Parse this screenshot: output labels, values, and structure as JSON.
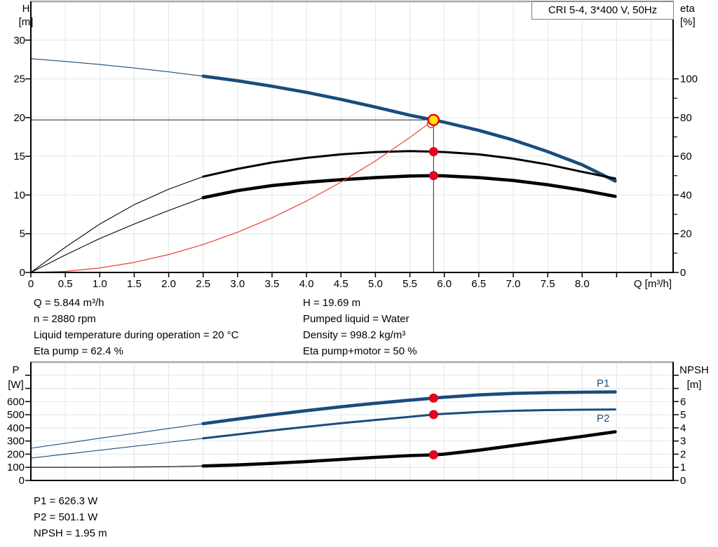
{
  "title_box": "CRI 5-4, 3*400 V, 50Hz",
  "colors": {
    "curve_blue": "#1a4c7d",
    "curve_black": "#000000",
    "curve_red": "#f03c32",
    "dot_red": "#e8001c",
    "duty_yellow": "#ffe400",
    "grid": "#e2e6e6",
    "border_gray": "#a5a9a9",
    "axis": "#000000",
    "ref_line": "#4d4d4d",
    "title_border": "#7f7f7f"
  },
  "top_chart": {
    "left_axis": {
      "title": [
        "H",
        "[m]"
      ],
      "ticks": [
        0,
        5,
        10,
        15,
        20,
        25,
        30
      ]
    },
    "right_axis": {
      "title": [
        "eta",
        "[%]"
      ],
      "ticks": [
        0,
        20,
        40,
        60,
        80,
        100
      ],
      "minor_ticks": [
        10,
        30,
        50,
        70,
        90
      ]
    },
    "x_axis": {
      "title": "Q [m³/h]",
      "tick_labels": [
        "0",
        "0.5",
        "1.0",
        "1.5",
        "2.0",
        "2.5",
        "3.0",
        "3.5",
        "4.0",
        "4.5",
        "5.0",
        "5.5",
        "6.0",
        "6.5",
        "7.0",
        "7.5",
        "8.0"
      ],
      "tick_values": [
        0,
        0.5,
        1,
        1.5,
        2,
        2.5,
        3,
        3.5,
        4,
        4.5,
        5,
        5.5,
        6,
        6.5,
        7,
        7.5,
        8
      ],
      "unlabeled_ticks": [
        8.5,
        9.0
      ]
    }
  },
  "bottom_chart": {
    "left_axis": {
      "title": [
        "P",
        "[W]"
      ],
      "ticks": [
        0,
        100,
        200,
        300,
        400,
        500,
        600
      ],
      "unlabeled_ticks": [
        700,
        800
      ]
    },
    "right_axis": {
      "title": [
        "NPSH",
        "[m]"
      ],
      "ticks": [
        0,
        1,
        2,
        3,
        4,
        5,
        6
      ],
      "unlabeled_ticks": [
        7,
        8
      ]
    }
  },
  "chart_data": [
    {
      "type": "line",
      "title": "CRI 5-4, 3*400 V, 50Hz",
      "xlabel": "Q [m³/h]",
      "ylabel": "H [m]",
      "y2label": "eta [%]",
      "xlim": [
        0,
        9.32
      ],
      "ylim": [
        0,
        35
      ],
      "y2lim": [
        0,
        140
      ],
      "grid": true,
      "series": [
        {
          "name": "H-Q curve",
          "axis": "left",
          "color": "blue",
          "weight": "heavy",
          "bold_from": 2.5,
          "points": [
            [
              0,
              27.6
            ],
            [
              0.5,
              27.25
            ],
            [
              1,
              26.85
            ],
            [
              1.5,
              26.4
            ],
            [
              2,
              25.9
            ],
            [
              2.5,
              25.35
            ],
            [
              3,
              24.75
            ],
            [
              3.5,
              24.05
            ],
            [
              4,
              23.25
            ],
            [
              4.5,
              22.35
            ],
            [
              5,
              21.35
            ],
            [
              5.5,
              20.3
            ],
            [
              5.844,
              19.69
            ],
            [
              6,
              19.4
            ],
            [
              6.5,
              18.35
            ],
            [
              7,
              17.1
            ],
            [
              7.5,
              15.6
            ],
            [
              8,
              13.9
            ],
            [
              8.48,
              11.8
            ]
          ]
        },
        {
          "name": "eta pump",
          "axis": "right",
          "color": "black",
          "weight": "medium",
          "bold_from": 2.5,
          "points": [
            [
              0,
              0
            ],
            [
              0.5,
              13
            ],
            [
              1,
              25
            ],
            [
              1.5,
              35
            ],
            [
              2,
              43
            ],
            [
              2.5,
              49.5
            ],
            [
              3,
              53.5
            ],
            [
              3.5,
              56.8
            ],
            [
              4,
              59.2
            ],
            [
              4.5,
              61
            ],
            [
              5,
              62.2
            ],
            [
              5.5,
              62.7
            ],
            [
              5.844,
              62.4
            ],
            [
              6,
              62.2
            ],
            [
              6.5,
              61
            ],
            [
              7,
              58.8
            ],
            [
              7.5,
              55.8
            ],
            [
              8,
              52
            ],
            [
              8.48,
              48.5
            ]
          ]
        },
        {
          "name": "eta pump+motor",
          "axis": "right",
          "color": "black",
          "weight": "heavy",
          "bold_from": 2.5,
          "points": [
            [
              0,
              0
            ],
            [
              0.5,
              9
            ],
            [
              1,
              17.5
            ],
            [
              1.5,
              25
            ],
            [
              2,
              32
            ],
            [
              2.5,
              38.6
            ],
            [
              3,
              42.3
            ],
            [
              3.5,
              44.9
            ],
            [
              4,
              46.6
            ],
            [
              4.5,
              47.9
            ],
            [
              5,
              49
            ],
            [
              5.5,
              49.8
            ],
            [
              5.844,
              50
            ],
            [
              6,
              49.9
            ],
            [
              6.5,
              49
            ],
            [
              7,
              47.5
            ],
            [
              7.5,
              45.3
            ],
            [
              8,
              42.5
            ],
            [
              8.48,
              39.3
            ]
          ]
        },
        {
          "name": "system curve",
          "axis": "left",
          "color": "red",
          "weight": "light",
          "points": [
            [
              0,
              0
            ],
            [
              0.5,
              0.14
            ],
            [
              1,
              0.58
            ],
            [
              1.5,
              1.3
            ],
            [
              2,
              2.31
            ],
            [
              2.5,
              3.6
            ],
            [
              3,
              5.19
            ],
            [
              3.5,
              7.06
            ],
            [
              4,
              9.22
            ],
            [
              4.5,
              11.67
            ],
            [
              5,
              14.41
            ],
            [
              5.5,
              17.44
            ],
            [
              5.844,
              19.69
            ]
          ]
        }
      ],
      "duty_point": {
        "q": 5.844,
        "h": 19.69
      },
      "markers": [
        {
          "q": 5.844,
          "axis": "right",
          "value": 62.4
        },
        {
          "q": 5.844,
          "axis": "right",
          "value": 50
        }
      ]
    },
    {
      "type": "line",
      "xlabel": "Q [m³/h]",
      "ylabel": "P [W]",
      "y2label": "NPSH [m]",
      "xlim": [
        0,
        9.32
      ],
      "ylim": [
        0,
        900
      ],
      "y2lim": [
        0,
        9
      ],
      "grid": true,
      "series": [
        {
          "name": "P1",
          "axis": "left",
          "color": "blue",
          "weight": "heavy",
          "bold_from": 2.5,
          "points": [
            [
              0,
              245
            ],
            [
              0.5,
              283
            ],
            [
              1,
              321
            ],
            [
              1.5,
              358
            ],
            [
              2,
              395
            ],
            [
              2.5,
              432
            ],
            [
              3,
              467
            ],
            [
              3.5,
              500
            ],
            [
              4,
              531
            ],
            [
              4.5,
              560
            ],
            [
              5,
              587
            ],
            [
              5.5,
              611
            ],
            [
              5.844,
              626.3
            ],
            [
              6,
              633
            ],
            [
              6.5,
              651
            ],
            [
              7,
              662
            ],
            [
              7.5,
              668
            ],
            [
              8,
              671
            ],
            [
              8.48,
              673
            ]
          ]
        },
        {
          "name": "P2",
          "axis": "left",
          "color": "blue",
          "weight": "medium",
          "bold_from": 2.5,
          "points": [
            [
              0,
              170
            ],
            [
              0.5,
              200
            ],
            [
              1,
              230
            ],
            [
              1.5,
              260
            ],
            [
              2,
              290
            ],
            [
              2.5,
              320
            ],
            [
              3,
              350
            ],
            [
              3.5,
              380
            ],
            [
              4,
              408
            ],
            [
              4.5,
              435
            ],
            [
              5,
              460
            ],
            [
              5.5,
              484
            ],
            [
              5.844,
              501.1
            ],
            [
              6,
              507
            ],
            [
              6.5,
              521
            ],
            [
              7,
              530
            ],
            [
              7.5,
              535
            ],
            [
              8,
              538
            ],
            [
              8.48,
              540
            ]
          ]
        },
        {
          "name": "NPSH",
          "axis": "right",
          "color": "black",
          "weight": "heavy",
          "bold_from": 2.5,
          "points": [
            [
              0,
              1.0
            ],
            [
              0.5,
              1.0
            ],
            [
              1,
              1.0
            ],
            [
              1.5,
              1.02
            ],
            [
              2,
              1.05
            ],
            [
              2.5,
              1.1
            ],
            [
              3,
              1.18
            ],
            [
              3.5,
              1.3
            ],
            [
              4,
              1.44
            ],
            [
              4.5,
              1.6
            ],
            [
              5,
              1.76
            ],
            [
              5.5,
              1.89
            ],
            [
              5.844,
              1.95
            ],
            [
              6,
              2.0
            ],
            [
              6.5,
              2.3
            ],
            [
              7,
              2.65
            ],
            [
              7.5,
              3.0
            ],
            [
              8,
              3.35
            ],
            [
              8.48,
              3.7
            ]
          ]
        }
      ],
      "markers": [
        {
          "q": 5.844,
          "axis": "left",
          "value": 626.3
        },
        {
          "q": 5.844,
          "axis": "left",
          "value": 501.1
        },
        {
          "q": 5.844,
          "axis": "right",
          "value": 1.95
        }
      ]
    }
  ],
  "curve_labels": {
    "p1": "P1",
    "p2": "P2"
  },
  "info_top_left": [
    "Q = 5.844 m³/h",
    "n = 2880 rpm",
    "Liquid temperature during operation = 20 °C",
    "Eta pump = 62.4 %"
  ],
  "info_top_right": [
    "H = 19.69 m",
    "Pumped liquid = Water",
    "Density = 998.2 kg/m³",
    "Eta pump+motor = 50 %"
  ],
  "info_bottom": [
    "P1 = 626.3 W",
    "P2 = 501.1 W",
    "NPSH = 1.95 m"
  ]
}
